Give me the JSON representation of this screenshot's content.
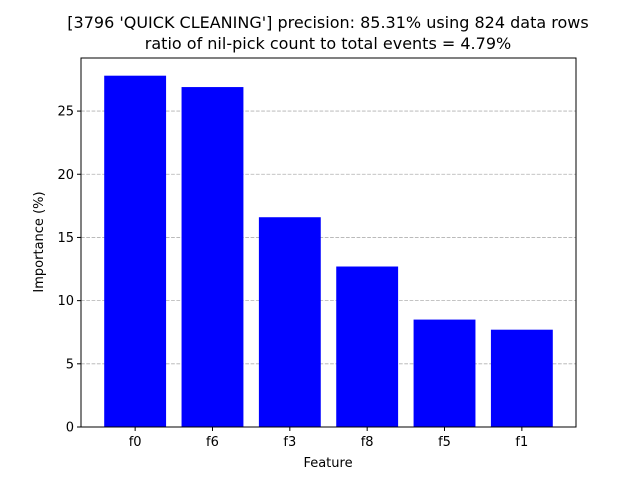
{
  "chart_data": {
    "type": "bar",
    "title": "[3796 'QUICK CLEANING'] precision: 85.31% using 824 data rows",
    "subtitle": "ratio of nil-pick count to total events = 4.79%",
    "xlabel": "Feature",
    "ylabel": "Importance (%)",
    "categories": [
      "f0",
      "f6",
      "f3",
      "f8",
      "f5",
      "f1"
    ],
    "values": [
      27.8,
      26.9,
      16.6,
      12.7,
      8.5,
      7.7
    ],
    "ylim": [
      0,
      29.2
    ],
    "yticks": [
      0,
      5,
      10,
      15,
      20,
      25
    ],
    "grid": "y-dashed",
    "bar_color": "#0000ff",
    "grid_color": "#b0b0b0",
    "legend": "none"
  }
}
